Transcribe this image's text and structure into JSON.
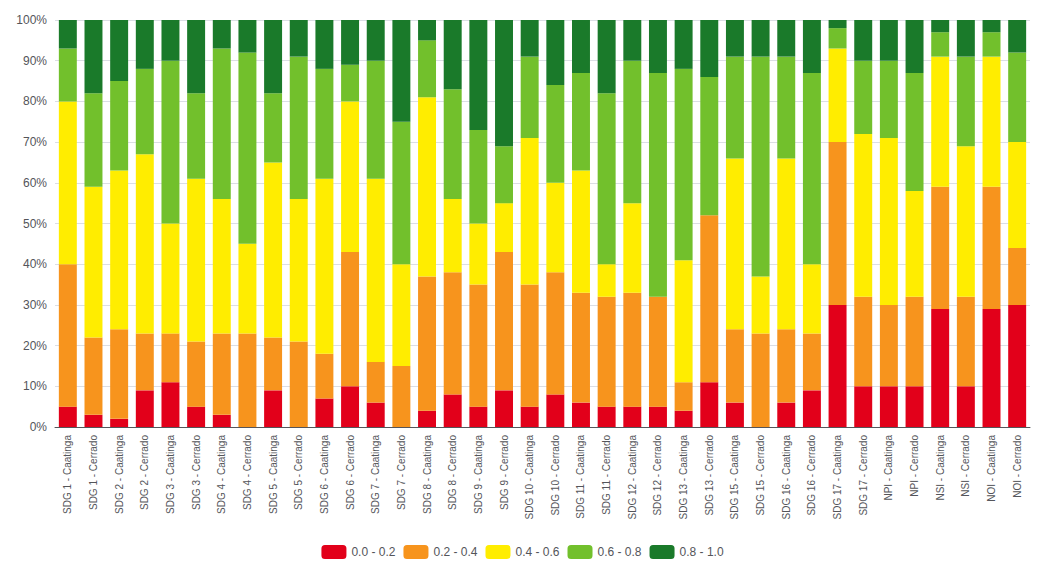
{
  "chart_data": {
    "type": "bar",
    "stacked": true,
    "categories": [
      "SDG 1 - Caatinga",
      "SDG 1 - Cerrado",
      "SDG 2 - Caatinga",
      "SDG 2 - Cerrado",
      "SDG 3 - Caatinga",
      "SDG 3 - Cerrado",
      "SDG 4 - Caatinga",
      "SDG 4 - Cerrado",
      "SDG 5 - Caatinga",
      "SDG 5 - Cerrado",
      "SDG 6 - Caatinga",
      "SDG 6 - Cerrado",
      "SDG 7 - Caatinga",
      "SDG 7 - Cerrado",
      "SDG 8 - Caatinga",
      "SDG 8 - Cerrado",
      "SDG 9 - Caatinga",
      "SDG 9 - Cerrado",
      "SDG 10 - Caatinga",
      "SDG 10 - Cerrado",
      "SDG 11 - Caatinga",
      "SDG 11 - Cerrado",
      "SDG 12 - Caatinga",
      "SDG 12 - Cerrado",
      "SDG 13 - Caatinga",
      "SDG 13 - Cerrado",
      "SDG 15 - Caatinga",
      "SDG 15 - Cerrado",
      "SDG 16 - Caatinga",
      "SDG 16 - Cerrado",
      "SDG 17 - Caatinga",
      "SDG 17 - Cerrado",
      "NPI - Caatinga",
      "NPI - Cerrado",
      "NSI - Caatinga",
      "NSI - Cerrado",
      "NOI - Caatinga",
      "NOI - Cerrado"
    ],
    "series": [
      {
        "name": "0.0 - 0.2",
        "color": "#e2001a",
        "values": [
          5,
          3,
          2,
          9,
          11,
          5,
          3,
          0,
          9,
          0,
          7,
          10,
          6,
          0,
          4,
          8,
          5,
          9,
          5,
          8,
          6,
          5,
          5,
          5,
          4,
          11,
          6,
          0,
          6,
          9,
          30,
          10,
          10,
          10,
          29,
          10,
          29,
          30
        ]
      },
      {
        "name": "0.2 - 0.4",
        "color": "#f7941d",
        "values": [
          35,
          19,
          22,
          14,
          12,
          16,
          20,
          23,
          13,
          21,
          11,
          33,
          10,
          15,
          33,
          30,
          30,
          34,
          30,
          30,
          27,
          27,
          28,
          27,
          7,
          41,
          18,
          23,
          18,
          14,
          40,
          22,
          20,
          22,
          30,
          22,
          30,
          14
        ]
      },
      {
        "name": "0.4 - 0.6",
        "color": "#ffed00",
        "values": [
          40,
          37,
          39,
          44,
          27,
          40,
          33,
          22,
          43,
          35,
          43,
          37,
          45,
          25,
          44,
          18,
          15,
          12,
          36,
          22,
          30,
          8,
          22,
          0,
          30,
          0,
          42,
          14,
          42,
          17,
          23,
          40,
          41,
          26,
          32,
          37,
          32,
          26
        ]
      },
      {
        "name": "0.6 - 0.8",
        "color": "#72c02c",
        "values": [
          13,
          23,
          22,
          21,
          40,
          21,
          37,
          47,
          17,
          35,
          27,
          9,
          29,
          35,
          14,
          27,
          23,
          14,
          20,
          24,
          24,
          42,
          35,
          55,
          47,
          34,
          25,
          54,
          25,
          47,
          5,
          18,
          19,
          29,
          6,
          22,
          6,
          22
        ]
      },
      {
        "name": "0.8 - 1.0",
        "color": "#1a7a2a",
        "values": [
          7,
          18,
          15,
          12,
          10,
          18,
          7,
          8,
          18,
          9,
          12,
          11,
          10,
          25,
          5,
          17,
          27,
          31,
          9,
          16,
          13,
          18,
          10,
          13,
          12,
          14,
          9,
          9,
          9,
          13,
          2,
          10,
          10,
          13,
          3,
          9,
          3,
          8
        ]
      }
    ],
    "ylim": [
      0,
      100
    ],
    "yticks": [
      {
        "value": 0,
        "label": "0%"
      },
      {
        "value": 10,
        "label": "10%"
      },
      {
        "value": 20,
        "label": "20%"
      },
      {
        "value": 30,
        "label": "30%"
      },
      {
        "value": 40,
        "label": "40%"
      },
      {
        "value": 50,
        "label": "50%"
      },
      {
        "value": 60,
        "label": "60%"
      },
      {
        "value": 70,
        "label": "70%"
      },
      {
        "value": 80,
        "label": "80%"
      },
      {
        "value": 90,
        "label": "90%"
      },
      {
        "value": 100,
        "label": "100%"
      }
    ],
    "grid": true,
    "legend": "bottom"
  }
}
